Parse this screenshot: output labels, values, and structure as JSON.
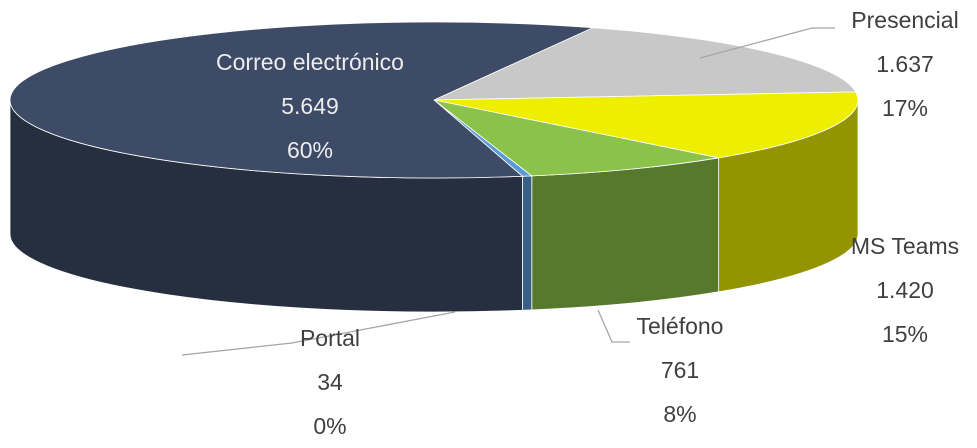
{
  "chart_data": {
    "type": "pie3d",
    "categories": [
      "Presencial",
      "MS Teams",
      "Teléfono",
      "Portal",
      "Correo electrónico"
    ],
    "values": [
      1637,
      1420,
      761,
      34,
      5649
    ],
    "value_labels": [
      "1.637",
      "1.420",
      "761",
      "34",
      "5.649"
    ],
    "percent_labels": [
      "17%",
      "15%",
      "8%",
      "0%",
      "60%"
    ],
    "colors": [
      "#c8c8c8",
      "#eeee00",
      "#8bc34a",
      "#5b9bd5",
      "#3e4b66"
    ]
  }
}
